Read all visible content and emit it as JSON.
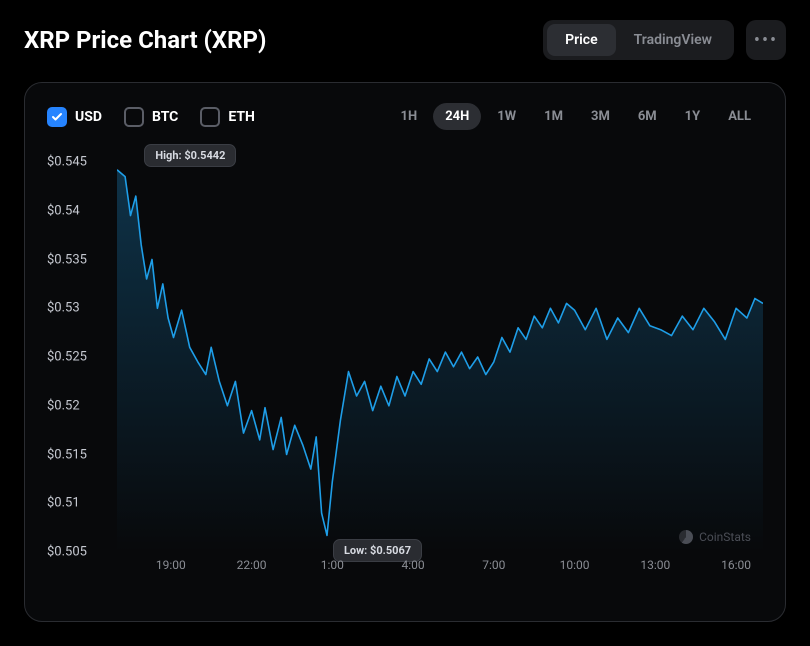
{
  "title": "XRP Price Chart (XRP)",
  "view_tabs": {
    "options": [
      "Price",
      "TradingView"
    ],
    "active": "Price"
  },
  "currency_toggles": [
    {
      "label": "USD",
      "checked": true
    },
    {
      "label": "BTC",
      "checked": false
    },
    {
      "label": "ETH",
      "checked": false
    }
  ],
  "time_ranges": {
    "options": [
      "1H",
      "24H",
      "1W",
      "1M",
      "3M",
      "6M",
      "1Y",
      "ALL"
    ],
    "active": "24H"
  },
  "chart": {
    "type": "line",
    "line_color": "#1e9ee8",
    "line_width": 1.6,
    "fill_top_color": "rgba(30,158,232,0.28)",
    "fill_bottom_color": "rgba(30,158,232,0.0)",
    "background_color": "#08090b",
    "card_border_color": "#2a2c31",
    "y": {
      "min": 0.505,
      "max": 0.545,
      "ticks": [
        0.545,
        0.54,
        0.535,
        0.53,
        0.525,
        0.52,
        0.515,
        0.51,
        0.505
      ],
      "tick_labels": [
        "$0.545",
        "$0.54",
        "$0.535",
        "$0.53",
        "$0.525",
        "$0.52",
        "$0.515",
        "$0.51",
        "$0.505"
      ],
      "label_color": "#c5c8d0",
      "label_fontsize": 13
    },
    "x": {
      "ticks_hours": [
        19,
        22,
        25,
        28,
        31,
        34,
        37,
        40
      ],
      "tick_labels": [
        "19:00",
        "22:00",
        "1:00",
        "4:00",
        "7:00",
        "10:00",
        "13:00",
        "16:00"
      ],
      "domain_hours": [
        17,
        41
      ],
      "label_color": "#8a8d94",
      "label_fontsize": 12
    },
    "annotations": {
      "high": {
        "label": "High: $0.5442",
        "at_hour": 17.2,
        "value": 0.5442
      },
      "low": {
        "label": "Low: $0.5067",
        "at_hour": 24.8,
        "value": 0.5067
      }
    },
    "series": [
      [
        17.0,
        0.5442
      ],
      [
        17.3,
        0.5435
      ],
      [
        17.5,
        0.5395
      ],
      [
        17.7,
        0.5415
      ],
      [
        17.9,
        0.5365
      ],
      [
        18.1,
        0.533
      ],
      [
        18.3,
        0.535
      ],
      [
        18.5,
        0.53
      ],
      [
        18.7,
        0.5325
      ],
      [
        18.9,
        0.529
      ],
      [
        19.1,
        0.527
      ],
      [
        19.4,
        0.5298
      ],
      [
        19.7,
        0.526
      ],
      [
        20.0,
        0.5245
      ],
      [
        20.3,
        0.5232
      ],
      [
        20.5,
        0.526
      ],
      [
        20.8,
        0.5225
      ],
      [
        21.1,
        0.52
      ],
      [
        21.4,
        0.5225
      ],
      [
        21.7,
        0.5172
      ],
      [
        22.0,
        0.5195
      ],
      [
        22.3,
        0.5165
      ],
      [
        22.5,
        0.5198
      ],
      [
        22.8,
        0.5155
      ],
      [
        23.1,
        0.5188
      ],
      [
        23.3,
        0.515
      ],
      [
        23.6,
        0.518
      ],
      [
        23.9,
        0.516
      ],
      [
        24.2,
        0.5135
      ],
      [
        24.4,
        0.5168
      ],
      [
        24.6,
        0.509
      ],
      [
        24.8,
        0.5067
      ],
      [
        25.0,
        0.5122
      ],
      [
        25.3,
        0.5185
      ],
      [
        25.6,
        0.5235
      ],
      [
        25.9,
        0.521
      ],
      [
        26.2,
        0.5225
      ],
      [
        26.5,
        0.5195
      ],
      [
        26.8,
        0.522
      ],
      [
        27.1,
        0.52
      ],
      [
        27.4,
        0.523
      ],
      [
        27.7,
        0.521
      ],
      [
        28.0,
        0.5235
      ],
      [
        28.3,
        0.5222
      ],
      [
        28.6,
        0.5248
      ],
      [
        28.9,
        0.5235
      ],
      [
        29.2,
        0.5255
      ],
      [
        29.5,
        0.524
      ],
      [
        29.8,
        0.5255
      ],
      [
        30.1,
        0.5238
      ],
      [
        30.4,
        0.525
      ],
      [
        30.7,
        0.5232
      ],
      [
        31.0,
        0.5245
      ],
      [
        31.3,
        0.527
      ],
      [
        31.6,
        0.5255
      ],
      [
        31.9,
        0.528
      ],
      [
        32.2,
        0.5268
      ],
      [
        32.5,
        0.5292
      ],
      [
        32.8,
        0.528
      ],
      [
        33.1,
        0.53
      ],
      [
        33.4,
        0.5285
      ],
      [
        33.7,
        0.5305
      ],
      [
        34.0,
        0.5298
      ],
      [
        34.4,
        0.5278
      ],
      [
        34.8,
        0.53
      ],
      [
        35.2,
        0.5268
      ],
      [
        35.6,
        0.529
      ],
      [
        36.0,
        0.5275
      ],
      [
        36.4,
        0.53
      ],
      [
        36.8,
        0.5282
      ],
      [
        37.2,
        0.5278
      ],
      [
        37.6,
        0.5272
      ],
      [
        38.0,
        0.5292
      ],
      [
        38.4,
        0.5278
      ],
      [
        38.8,
        0.53
      ],
      [
        39.2,
        0.5286
      ],
      [
        39.6,
        0.5268
      ],
      [
        40.0,
        0.53
      ],
      [
        40.4,
        0.529
      ],
      [
        40.7,
        0.531
      ],
      [
        41.0,
        0.5305
      ]
    ]
  },
  "watermark": "CoinStats",
  "accent_color": "#2684ff"
}
